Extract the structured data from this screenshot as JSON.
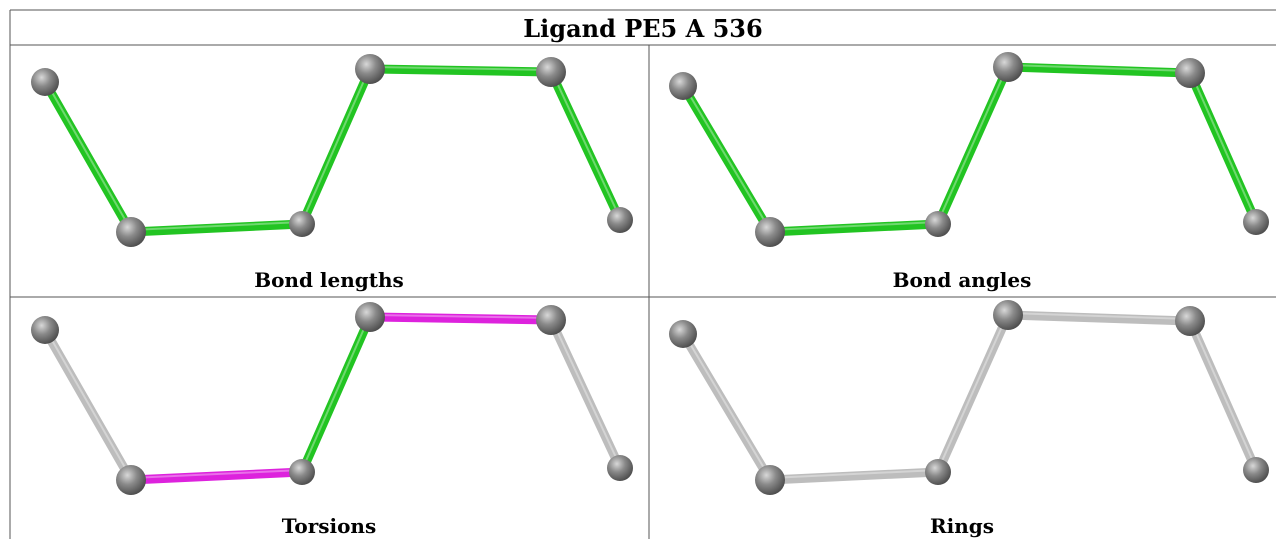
{
  "title": "Ligand PE5 A 536",
  "colors": {
    "good": "#22c422",
    "outlier": "#dd22dd",
    "not_assessed": "#bdbdbd",
    "atom": "#777777"
  },
  "panels": [
    {
      "label": "Bond lengths",
      "bonds": [
        "good",
        "good",
        "good",
        "good",
        "good"
      ]
    },
    {
      "label": "Bond angles",
      "bonds": [
        "good",
        "good",
        "good",
        "good",
        "good"
      ]
    },
    {
      "label": "Torsions",
      "bonds": [
        "not_assessed",
        "outlier",
        "good",
        "outlier",
        "not_assessed"
      ]
    },
    {
      "label": "Rings",
      "bonds": [
        "not_assessed",
        "not_assessed",
        "not_assessed",
        "not_assessed",
        "not_assessed"
      ]
    }
  ]
}
